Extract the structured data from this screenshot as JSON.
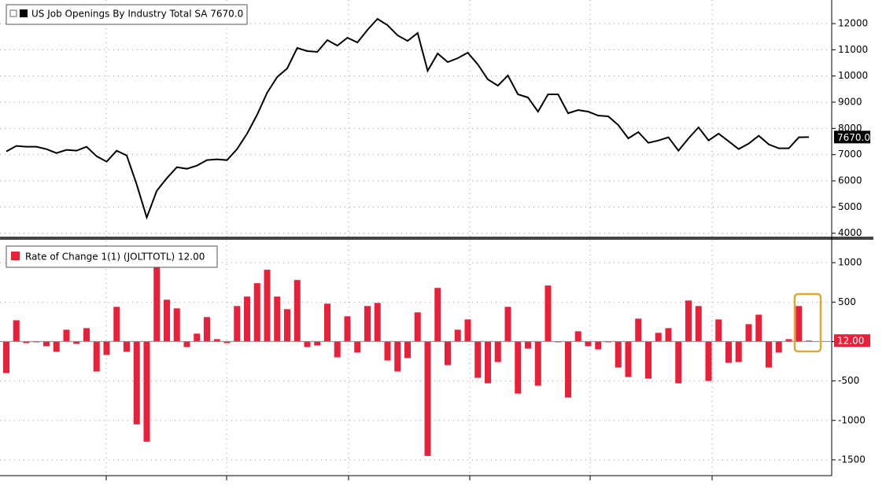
{
  "chart_data": [
    {
      "type": "line",
      "series": [
        {
          "name": "US Job Openings By Industry Total SA 7670.0",
          "color": "#000000",
          "values": [
            7120,
            7330,
            7300,
            7300,
            7210,
            7060,
            7180,
            7150,
            7300,
            6940,
            6730,
            7150,
            6970,
            5860,
            4600,
            5620,
            6100,
            6520,
            6460,
            6580,
            6790,
            6820,
            6790,
            7210,
            7800,
            8520,
            9360,
            9960,
            10290,
            11070,
            10950,
            10920,
            11370,
            11160,
            11460,
            11280,
            11760,
            12180,
            11940,
            11550,
            11340,
            11640,
            10200,
            10860,
            10530,
            10680,
            10890,
            10440,
            9870,
            9630,
            10020,
            9300,
            9180,
            8640,
            9300,
            9300,
            8580,
            8700,
            8640,
            8490,
            8460,
            8130,
            7620,
            7860,
            7450,
            7540,
            7660,
            7150,
            7620,
            8040,
            7540,
            7800,
            7510,
            7210,
            7420,
            7720,
            7390,
            7240,
            7240,
            7660,
            7670
          ],
          "value_labels": [
            null,
            null,
            null,
            null,
            null,
            null,
            null,
            null,
            null,
            null,
            null,
            null,
            null,
            null,
            null,
            null,
            null,
            null,
            null,
            null,
            null,
            null,
            null,
            null,
            null,
            null,
            null,
            null,
            null,
            null,
            null,
            null,
            null,
            null,
            null,
            null,
            null,
            null,
            null,
            null,
            null,
            null,
            null,
            null,
            null,
            null,
            null,
            null,
            null,
            null,
            null,
            null,
            null,
            null,
            null,
            null,
            null,
            null,
            null,
            null,
            null,
            null,
            null,
            null,
            null,
            null,
            null,
            null,
            null,
            null,
            null,
            null,
            null,
            null,
            null,
            null,
            null,
            null,
            null,
            null,
            "7670.0"
          ]
        }
      ],
      "ylim": [
        3900,
        12900
      ],
      "yticks": [
        4000,
        5000,
        6000,
        7000,
        8000,
        9000,
        10000,
        11000,
        12000
      ],
      "grid": true
    },
    {
      "type": "bar",
      "series": [
        {
          "name": "Rate of Change 1(1) (JOLTTOTL) 12.00",
          "color": "#e8203a",
          "values": [
            -400,
            270,
            -20,
            -10,
            -60,
            -130,
            150,
            -30,
            170,
            -380,
            -170,
            440,
            -130,
            -1050,
            -1270,
            940,
            530,
            420,
            -70,
            100,
            310,
            30,
            -20,
            450,
            570,
            740,
            910,
            570,
            410,
            780,
            -70,
            -50,
            480,
            -200,
            320,
            -140,
            450,
            490,
            -240,
            -380,
            -210,
            370,
            -1450,
            680,
            -300,
            150,
            280,
            -460,
            -530,
            -260,
            440,
            -660,
            -90,
            -560,
            710,
            0,
            -710,
            130,
            -60,
            -100,
            -10,
            -330,
            -450,
            290,
            -470,
            110,
            170,
            -530,
            520,
            450,
            -500,
            280,
            -270,
            -260,
            220,
            340,
            -330,
            -140,
            30,
            450,
            12
          ],
          "value_labels": [
            null,
            null,
            null,
            null,
            null,
            null,
            null,
            null,
            null,
            null,
            null,
            null,
            null,
            null,
            null,
            null,
            null,
            null,
            null,
            null,
            null,
            null,
            null,
            null,
            null,
            null,
            null,
            null,
            null,
            null,
            null,
            null,
            null,
            null,
            null,
            null,
            null,
            null,
            null,
            null,
            null,
            null,
            null,
            null,
            null,
            null,
            null,
            null,
            null,
            null,
            null,
            null,
            null,
            null,
            null,
            null,
            null,
            null,
            null,
            null,
            null,
            null,
            null,
            null,
            null,
            null,
            null,
            null,
            null,
            null,
            null,
            null,
            null,
            null,
            null,
            null,
            null,
            null,
            null,
            null,
            "12.00"
          ]
        }
      ],
      "ylim": [
        -1700,
        1280
      ],
      "yticks": [
        -1500,
        -1000,
        -500,
        0,
        500,
        1000
      ],
      "grid": true
    }
  ]
}
